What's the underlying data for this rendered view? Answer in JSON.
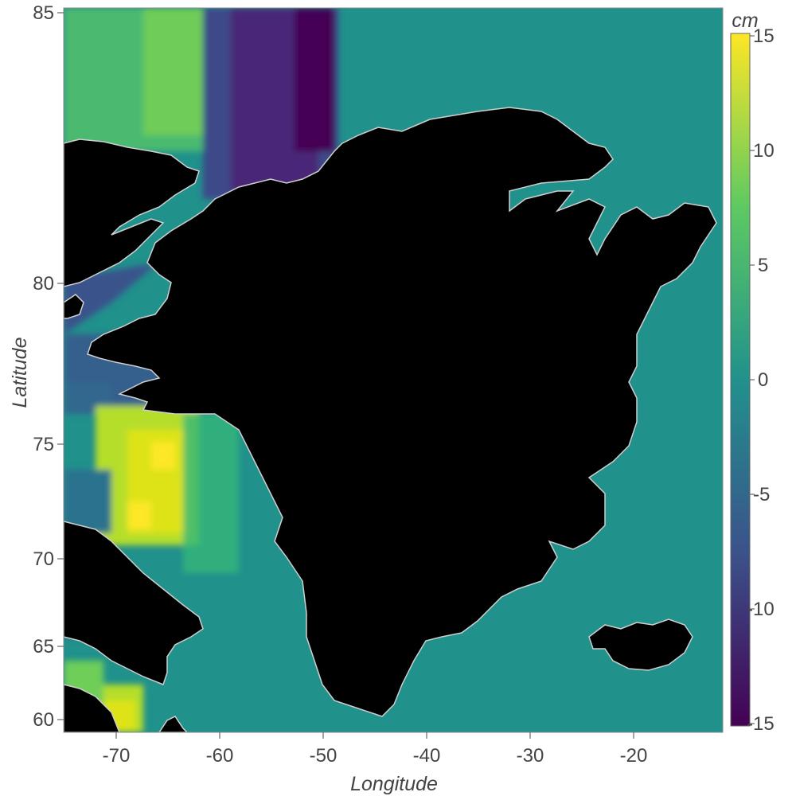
{
  "map": {
    "xlabel": "Longitude",
    "ylabel": "Latitude",
    "x_ticks": [
      "-70",
      "-60",
      "-50",
      "-40",
      "-30",
      "-20"
    ],
    "y_ticks": [
      "85",
      "80",
      "75",
      "70",
      "65",
      "60"
    ],
    "land_color": "#000000",
    "coast_color": "#cfcfcf",
    "ocean_base_color": "#21918c"
  },
  "colorbar": {
    "unit": "cm",
    "ticks": [
      "15",
      "10",
      "5",
      "0",
      "-5",
      "-10",
      "-15"
    ],
    "min": -15,
    "max": 15,
    "colormap": "viridis",
    "colors": [
      "#440154",
      "#3b528b",
      "#21918c",
      "#5ec962",
      "#fde725"
    ]
  }
}
